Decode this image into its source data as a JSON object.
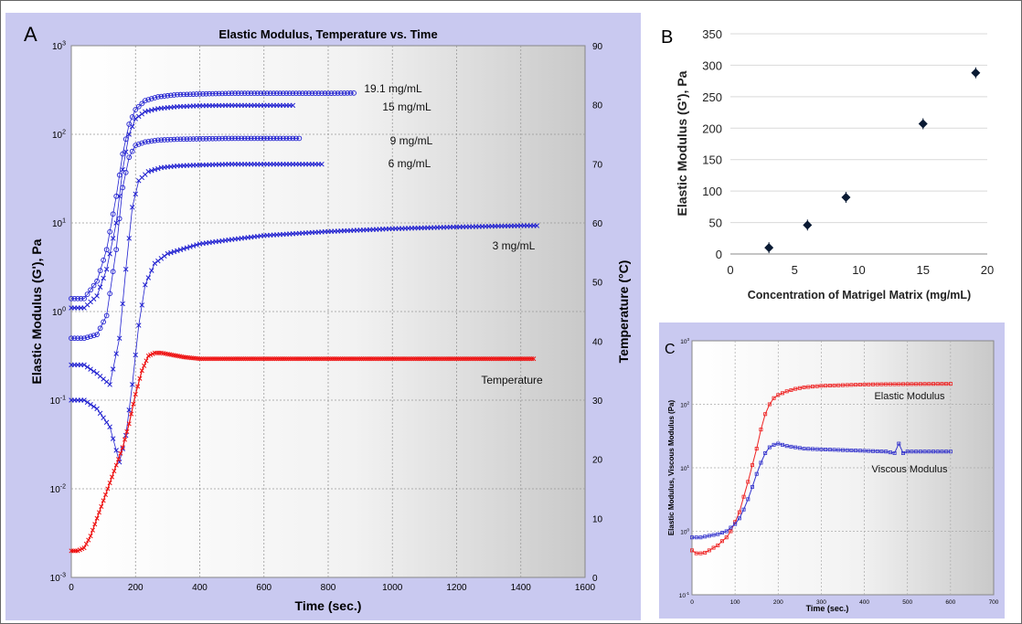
{
  "chart_data": [
    {
      "panel_label": "A",
      "type": "line",
      "title": "Elastic Modulus, Temperature vs. Time",
      "xlabel": "Time (sec.)",
      "ylabel": "Elastic Modulus (G'), Pa",
      "y2label": "Temperature (°C)",
      "xlim": [
        0,
        1600
      ],
      "x_ticks": [
        0,
        200,
        400,
        600,
        800,
        1000,
        1200,
        1400,
        1600
      ],
      "yscale": "log",
      "ylim": [
        0.001,
        1000
      ],
      "y_ticks": [
        {
          "v": 0.001,
          "base": "10",
          "exp": "-3"
        },
        {
          "v": 0.01,
          "base": "10",
          "exp": "-2"
        },
        {
          "v": 0.1,
          "base": "10",
          "exp": "-1"
        },
        {
          "v": 1,
          "base": "10",
          "exp": "0"
        },
        {
          "v": 10,
          "base": "10",
          "exp": "1"
        },
        {
          "v": 100,
          "base": "10",
          "exp": "2"
        },
        {
          "v": 1000,
          "base": "10",
          "exp": "3"
        }
      ],
      "y2lim": [
        0,
        90
      ],
      "y2_ticks": [
        0,
        10,
        20,
        30,
        40,
        50,
        60,
        70,
        80,
        90
      ],
      "grid": true,
      "series": [
        {
          "name": "19.1 mg/mL",
          "color": "#2020d0",
          "axis": "left",
          "x": [
            0,
            40,
            80,
            110,
            140,
            160,
            180,
            200,
            230,
            270,
            330,
            400,
            500,
            600,
            700,
            800,
            880
          ],
          "y": [
            1.4,
            1.4,
            2.2,
            5,
            20,
            60,
            130,
            190,
            240,
            265,
            280,
            285,
            290,
            290,
            290,
            290,
            292
          ]
        },
        {
          "name": "15 mg/mL",
          "color": "#2020d0",
          "axis": "left",
          "x": [
            0,
            40,
            80,
            110,
            140,
            160,
            180,
            200,
            230,
            270,
            330,
            400,
            500,
            600,
            690
          ],
          "y": [
            1.1,
            1.1,
            1.5,
            3,
            10,
            40,
            100,
            150,
            180,
            195,
            205,
            210,
            212,
            212,
            212
          ]
        },
        {
          "name": "9 mg/mL",
          "color": "#2020d0",
          "axis": "left",
          "x": [
            0,
            40,
            80,
            110,
            140,
            160,
            180,
            200,
            230,
            270,
            330,
            400,
            500,
            600,
            710
          ],
          "y": [
            0.5,
            0.5,
            0.55,
            0.9,
            5,
            25,
            55,
            75,
            82,
            86,
            88,
            89,
            90,
            90,
            90
          ]
        },
        {
          "name": "6 mg/mL",
          "color": "#2020d0",
          "axis": "left",
          "x": [
            0,
            40,
            80,
            120,
            150,
            170,
            190,
            210,
            240,
            280,
            330,
            400,
            500,
            600,
            700,
            780
          ],
          "y": [
            0.25,
            0.25,
            0.2,
            0.15,
            0.5,
            3,
            15,
            30,
            38,
            42,
            44,
            45,
            46,
            46,
            46,
            46
          ]
        },
        {
          "name": "3 mg/mL",
          "color": "#2020d0",
          "axis": "left",
          "x": [
            0,
            40,
            80,
            120,
            150,
            170,
            190,
            210,
            230,
            260,
            300,
            400,
            500,
            600,
            800,
            1000,
            1200,
            1400,
            1450
          ],
          "y": [
            0.1,
            0.1,
            0.08,
            0.05,
            0.02,
            0.04,
            0.15,
            0.7,
            2,
            3.5,
            4.5,
            5.8,
            6.5,
            7.2,
            8,
            8.6,
            9,
            9.3,
            9.3
          ]
        },
        {
          "name": "Temperature",
          "color": "#ee1111",
          "axis": "right",
          "x": [
            0,
            20,
            40,
            60,
            80,
            100,
            120,
            140,
            160,
            180,
            200,
            220,
            240,
            260,
            280,
            300,
            350,
            400,
            500,
            700,
            1000,
            1200,
            1440
          ],
          "y": [
            4.5,
            4.5,
            5,
            7,
            10,
            13,
            16,
            19,
            22,
            26,
            31,
            35,
            37.5,
            38,
            38,
            37.8,
            37.3,
            37,
            37,
            37,
            37,
            37,
            37
          ]
        }
      ],
      "annotations": [
        "19.1 mg/mL",
        "15 mg/mL",
        "9 mg/mL",
        "6 mg/mL",
        "3 mg/mL",
        "Temperature"
      ]
    },
    {
      "panel_label": "B",
      "type": "scatter",
      "title": "",
      "xlabel": "Concentration of Matrigel Matrix (mg/mL)",
      "ylabel": "Elastic  Modulus (G'), Pa",
      "xlim": [
        0,
        20
      ],
      "x_ticks": [
        0,
        5,
        10,
        15,
        20
      ],
      "ylim": [
        0,
        350
      ],
      "y_ticks": [
        0,
        50,
        100,
        150,
        200,
        250,
        300,
        350
      ],
      "grid": true,
      "x": [
        3,
        6,
        9,
        15,
        19.1
      ],
      "y": [
        10,
        46,
        90,
        207,
        288
      ]
    },
    {
      "panel_label": "C",
      "type": "line",
      "title": "",
      "xlabel": "Time (sec.)",
      "ylabel": "Elastic Modulus, Viscous Modulus (Pa)",
      "xlim": [
        0,
        700
      ],
      "x_ticks": [
        0,
        100,
        200,
        300,
        400,
        500,
        600,
        700
      ],
      "yscale": "log",
      "ylim": [
        0.1,
        1000
      ],
      "y_ticks": [
        {
          "v": 0.1,
          "base": "10",
          "exp": "-1"
        },
        {
          "v": 1,
          "base": "10",
          "exp": "0"
        },
        {
          "v": 10,
          "base": "10",
          "exp": "1"
        },
        {
          "v": 100,
          "base": "10",
          "exp": "2"
        },
        {
          "v": 1000,
          "base": "10",
          "exp": "3"
        }
      ],
      "grid": true,
      "series": [
        {
          "name": "Elastic Modulus",
          "color": "#ee2222",
          "x": [
            0,
            10,
            20,
            30,
            40,
            50,
            60,
            70,
            80,
            90,
            100,
            110,
            120,
            130,
            140,
            150,
            160,
            170,
            180,
            190,
            200,
            220,
            240,
            260,
            300,
            350,
            400,
            450,
            500,
            550,
            600
          ],
          "y": [
            0.5,
            0.45,
            0.45,
            0.46,
            0.5,
            0.55,
            0.6,
            0.7,
            0.8,
            1,
            1.4,
            2,
            3.5,
            6,
            11,
            20,
            40,
            70,
            100,
            125,
            140,
            160,
            175,
            185,
            195,
            200,
            205,
            207,
            208,
            209,
            210
          ]
        },
        {
          "name": "Viscous Modulus",
          "color": "#3333cc",
          "x": [
            0,
            20,
            40,
            60,
            80,
            100,
            110,
            120,
            130,
            140,
            150,
            160,
            170,
            180,
            190,
            200,
            210,
            220,
            240,
            260,
            300,
            350,
            400,
            450,
            470,
            480,
            490,
            500,
            550,
            600
          ],
          "y": [
            0.8,
            0.8,
            0.85,
            0.9,
            1,
            1.3,
            1.6,
            2.2,
            3.2,
            5,
            8,
            12,
            17,
            21,
            23,
            24,
            23,
            22,
            21,
            20,
            19.5,
            19,
            18.5,
            18,
            17,
            24,
            17,
            18,
            18,
            18
          ]
        }
      ],
      "annotations": [
        "Elastic Modulus",
        "Viscous Modulus"
      ]
    }
  ]
}
